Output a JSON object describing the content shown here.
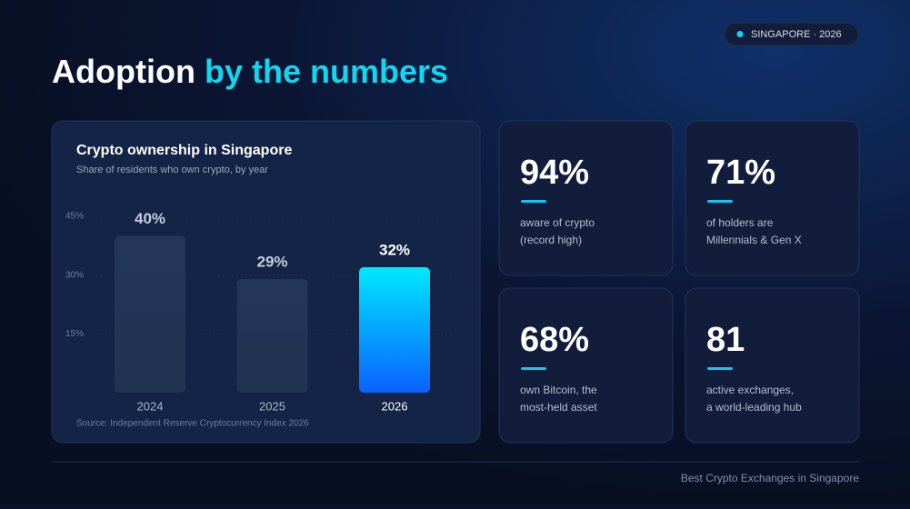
{
  "header": {
    "title_plain": "Adoption",
    "title_accent": "by the numbers",
    "badge": "SINGAPORE · 2026"
  },
  "chart_data": {
    "type": "bar",
    "title": "Crypto ownership in Singapore",
    "subtitle": "Share of residents who own crypto, by year",
    "categories": [
      "2024",
      "2025",
      "2026"
    ],
    "values": [
      40,
      29,
      32
    ],
    "value_labels": [
      "40%",
      "29%",
      "32%"
    ],
    "colors": [
      [
        "#233658",
        "#213352"
      ],
      [
        "#233658",
        "#213352"
      ],
      [
        "#00e8ff",
        "#0a62ff"
      ]
    ],
    "ylim": [
      0,
      45
    ],
    "yticks": [
      {
        "value": 15,
        "label": "15%"
      },
      {
        "value": 30,
        "label": "30%"
      },
      {
        "value": 45,
        "label": "45%"
      }
    ],
    "source": "Source: Independent Reserve Cryptocurrency Index 2026"
  },
  "stats": [
    {
      "value": "94%",
      "lines": [
        "aware of crypto",
        "(record high)"
      ]
    },
    {
      "value": "71%",
      "lines": [
        "of holders are",
        "Millennials & Gen X"
      ]
    },
    {
      "value": "68%",
      "lines": [
        "own Bitcoin, the",
        "most-held asset"
      ]
    },
    {
      "value": "81",
      "lines": [
        "active exchanges,",
        "a world-leading hub"
      ]
    }
  ],
  "footer": "Best Crypto Exchanges in Singapore"
}
